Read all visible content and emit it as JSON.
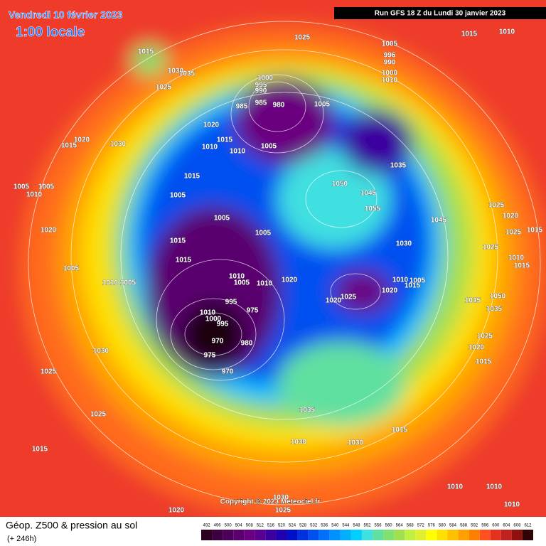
{
  "header": {
    "date": "Vendredi 10 février 2023",
    "time": "1:00 locale",
    "run": "Run GFS 18 Z du Lundi 30 janvier 2023"
  },
  "copyright": "Copyright © 2023 Meteociel.fr",
  "footer": {
    "title": "Géop. Z500 & pression au sol",
    "lead": "(+ 246h)"
  },
  "legend": {
    "values": [
      492,
      496,
      500,
      504,
      508,
      512,
      516,
      520,
      524,
      528,
      532,
      536,
      540,
      544,
      548,
      552,
      556,
      560,
      564,
      568,
      572,
      576,
      580,
      584,
      588,
      592,
      596,
      600,
      604,
      608,
      612
    ],
    "colors": [
      "#2b0020",
      "#3c0040",
      "#4d005a",
      "#5a006e",
      "#6a0080",
      "#5a0090",
      "#3c00a0",
      "#2000b0",
      "#0010c8",
      "#0030e0",
      "#0050f0",
      "#0070ff",
      "#0090ff",
      "#00b0ff",
      "#00d0ff",
      "#40e0e0",
      "#60e0a0",
      "#80e070",
      "#a0e050",
      "#c0f040",
      "#e0f030",
      "#ffff00",
      "#ffe000",
      "#ffc000",
      "#ffa000",
      "#ff8000",
      "#ff5020",
      "#e83020",
      "#c02020",
      "#901010",
      "#300404"
    ]
  },
  "isobar_labels": [
    "1025",
    "1005",
    "996",
    "990",
    "1000",
    "1010",
    "1015",
    "1010",
    "1015",
    "1030",
    "1035",
    "1025",
    "1000",
    "995",
    "990",
    "985",
    "985",
    "980",
    "1005",
    "1020",
    "1015",
    "1010",
    "1010",
    "1005",
    "1020",
    "1015",
    "1030",
    "1035",
    "1015",
    "1005",
    "1050",
    "1045",
    "1055",
    "1025",
    "1020",
    "1005",
    "1005",
    "1045",
    "1025",
    "1015",
    "1030",
    "1025",
    "1010",
    "1015",
    "1005",
    "1005",
    "1010",
    "1020",
    "1015",
    "1015",
    "1005",
    "1010",
    "1005",
    "1010",
    "1005",
    "1010",
    "1020",
    "1010",
    "1005",
    "1020",
    "1015",
    "1025",
    "1020",
    "1050",
    "1035",
    "1035",
    "995",
    "975",
    "1010",
    "1000",
    "995",
    "970",
    "980",
    "975",
    "970",
    "1030",
    "1025",
    "1025",
    "1020",
    "1015",
    "1025",
    "1035",
    "1015",
    "1015",
    "1030",
    "1030",
    "1010",
    "1010",
    "1020",
    "1025",
    "1030",
    "1010"
  ]
}
